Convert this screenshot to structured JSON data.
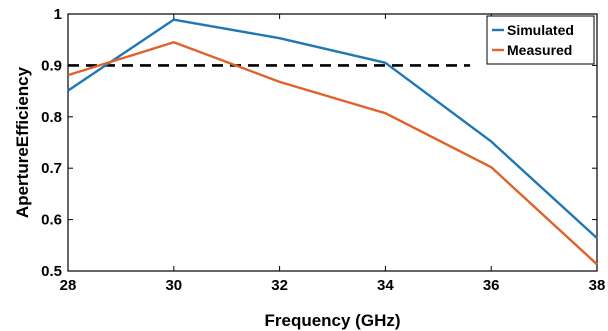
{
  "chart_data": {
    "type": "line",
    "title": "",
    "xlabel": "Frequency (GHz)",
    "ylabel": "ApertureEfficiency",
    "xlim": [
      28,
      38
    ],
    "ylim": [
      0.5,
      1
    ],
    "x_ticks": [
      28,
      30,
      32,
      34,
      36,
      38
    ],
    "y_ticks": [
      0.5,
      0.6,
      0.7,
      0.8,
      0.9,
      1
    ],
    "x_tick_labels": [
      "28",
      "30",
      "32",
      "34",
      "36",
      "38"
    ],
    "y_tick_labels": [
      "0.5",
      "0.6",
      "0.7",
      "0.8",
      "0.9",
      "1"
    ],
    "grid": false,
    "legend_position": "top-right",
    "series": [
      {
        "name": "Simulated",
        "color": "#1f77b4",
        "x": [
          28,
          30,
          32,
          34,
          36,
          38
        ],
        "y": [
          0.851,
          0.989,
          0.953,
          0.905,
          0.752,
          0.564
        ]
      },
      {
        "name": "Measured",
        "color": "#e0622a",
        "x": [
          28,
          30,
          32,
          34,
          36,
          38
        ],
        "y": [
          0.881,
          0.945,
          0.868,
          0.807,
          0.702,
          0.513
        ]
      }
    ],
    "reference_line": {
      "style": "dashed",
      "color": "#000000",
      "y": 0.9,
      "x": [
        28,
        35.6
      ]
    }
  }
}
